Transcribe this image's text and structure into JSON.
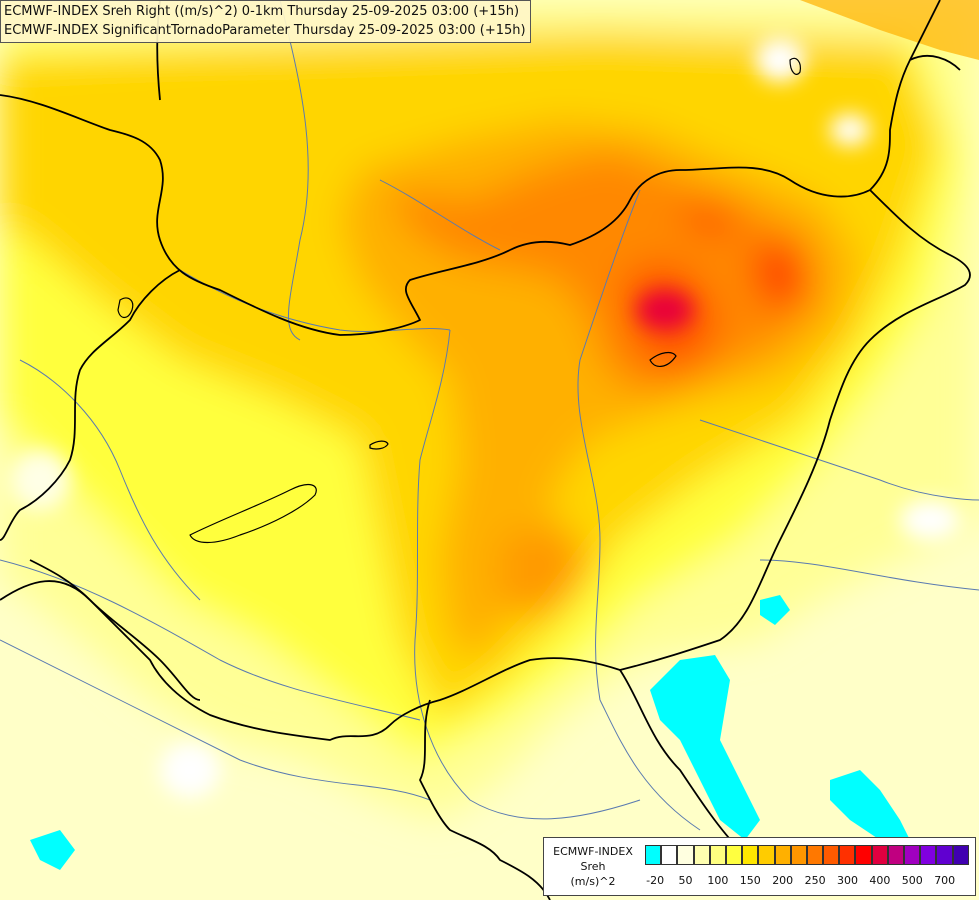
{
  "titles": {
    "line1": "ECMWF-INDEX Sreh Right ((m/s)^2) 0-1km Thursday 25-09-2025 03:00 (+15h)",
    "line2": "ECMWF-INDEX SignificantTornadoParameter Thursday 25-09-2025 03:00 (+15h)"
  },
  "legend": {
    "source": "ECMWF-INDEX",
    "variable": "Sreh",
    "unit": "(m/s)^2",
    "colors": [
      "#00ffff",
      "#ffffff",
      "#ffffe0",
      "#ffffb0",
      "#ffff80",
      "#ffff40",
      "#ffe600",
      "#ffcc00",
      "#ffb000",
      "#ff9600",
      "#ff7800",
      "#ff5a00",
      "#ff3000",
      "#ff0000",
      "#e00040",
      "#c00080",
      "#a000c0",
      "#8000e0",
      "#6000d0",
      "#4000b0",
      "#200090",
      "#000080"
    ],
    "tick_labels": [
      {
        "text": "-20",
        "index": 0
      },
      {
        "text": "50",
        "index": 2
      },
      {
        "text": "100",
        "index": 4
      },
      {
        "text": "150",
        "index": 6
      },
      {
        "text": "200",
        "index": 8
      },
      {
        "text": "250",
        "index": 10
      },
      {
        "text": "300",
        "index": 12
      },
      {
        "text": "400",
        "index": 14
      },
      {
        "text": "500",
        "index": 16
      },
      {
        "text": "700",
        "index": 18
      }
    ]
  },
  "map": {
    "background_color": "#ffffc8",
    "border_color": "#000000",
    "river_color": "#5a7ab0",
    "lake_color": "#00ffff"
  }
}
